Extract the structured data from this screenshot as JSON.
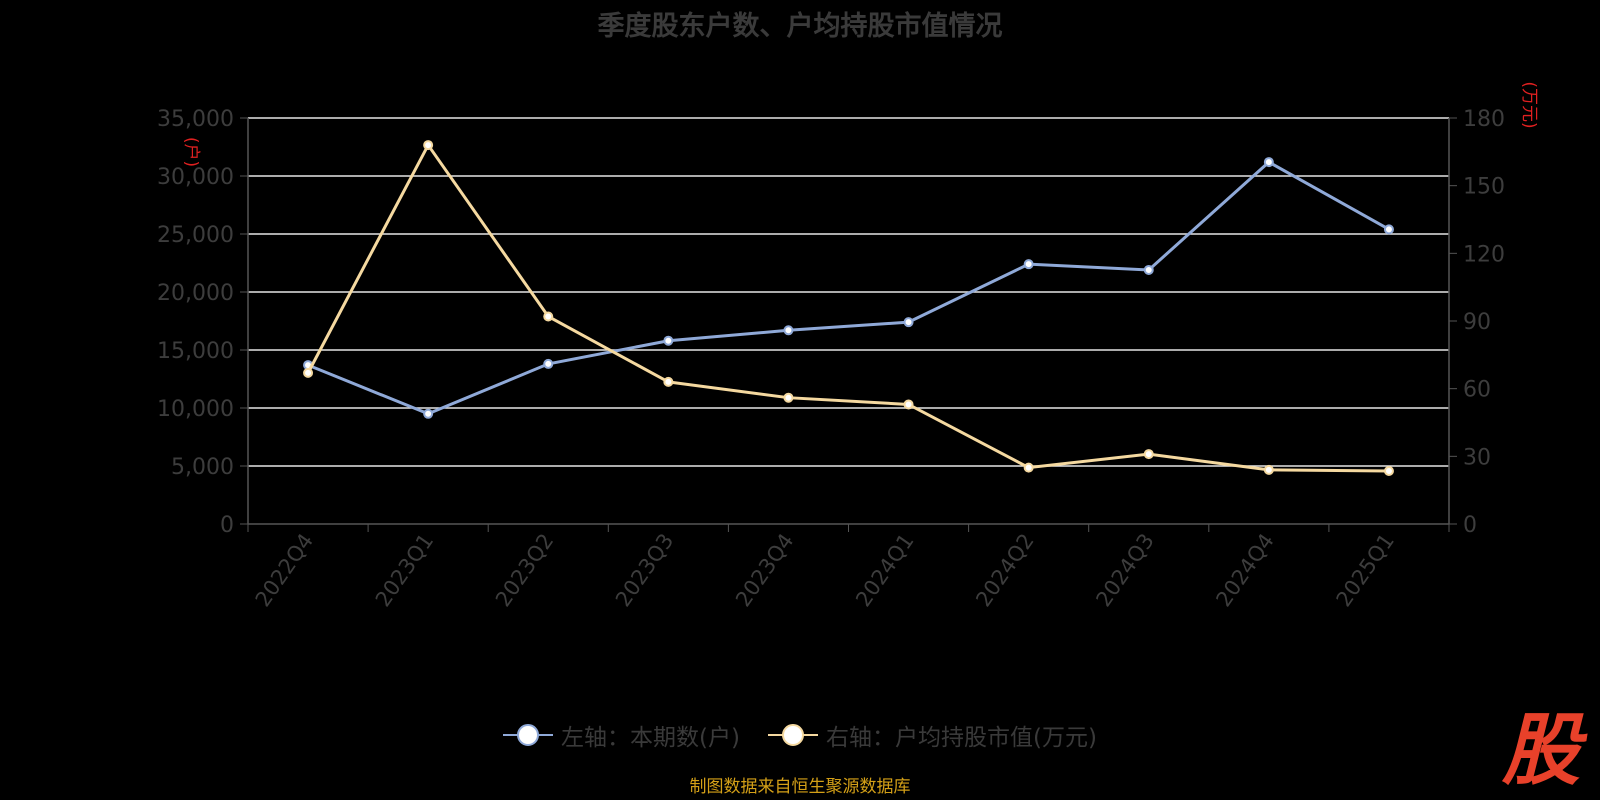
{
  "chart_data": {
    "type": "line",
    "title": "季度股东户数、户均持股市值情况",
    "categories": [
      "2022Q4",
      "2023Q1",
      "2023Q2",
      "2023Q3",
      "2023Q4",
      "2024Q1",
      "2024Q2",
      "2024Q3",
      "2024Q4",
      "2025Q1"
    ],
    "series": [
      {
        "name": "左轴：本期数(户)",
        "axis": "left",
        "color": "#8fa9d8",
        "values": [
          13700,
          9500,
          13800,
          15800,
          16700,
          17400,
          22400,
          21900,
          31200,
          25400
        ]
      },
      {
        "name": "右轴：户均持股市值(万元)",
        "axis": "right",
        "color": "#f5d9a0",
        "values": [
          67,
          168,
          92,
          63,
          56,
          53,
          25,
          31,
          24,
          23.5
        ]
      }
    ],
    "left_axis": {
      "unit": "(户)",
      "ylim": [
        0,
        35000
      ],
      "ticks": [
        "0",
        "5,000",
        "10,000",
        "15,000",
        "20,000",
        "25,000",
        "30,000",
        "35,000"
      ]
    },
    "right_axis": {
      "unit": "(万元)",
      "ylim": [
        0,
        180
      ],
      "ticks": [
        "0",
        "30",
        "60",
        "90",
        "120",
        "150",
        "180"
      ]
    },
    "grid": true,
    "legend_position": "bottom"
  },
  "footer": "制图数据来自恒生聚源数据库",
  "logo_text": "股"
}
